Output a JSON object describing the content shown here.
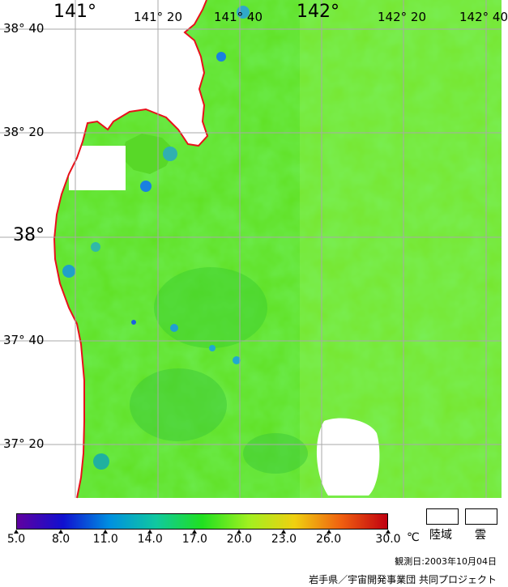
{
  "map": {
    "lon_labels": [
      {
        "text": "141°",
        "size": "big"
      },
      {
        "text": "141° 20",
        "size": "small"
      },
      {
        "text": "141° 40",
        "size": "small"
      },
      {
        "text": "142°",
        "size": "big"
      },
      {
        "text": "142° 20",
        "size": "small"
      },
      {
        "text": "142° 40",
        "size": "small"
      }
    ],
    "lat_labels": [
      {
        "text": "38° 40",
        "size": "small"
      },
      {
        "text": "38° 20",
        "size": "small"
      },
      {
        "text": "38°",
        "size": "big"
      },
      {
        "text": "37° 40",
        "size": "small"
      },
      {
        "text": "37° 20",
        "size": "small"
      }
    ],
    "colors": {
      "land": "#ffffff",
      "coast": "#e8101a",
      "grid": "#a8a8a8",
      "sea_base": "#5fe020"
    }
  },
  "colorbar": {
    "ticks": [
      "5.0",
      "8.0",
      "11.0",
      "14.0",
      "17.0",
      "20.0",
      "23.0",
      "26.0",
      "30.0"
    ],
    "unit": "℃",
    "colors": [
      "#6000a0",
      "#1010d0",
      "#0090e0",
      "#10c8a0",
      "#20e020",
      "#a0f020",
      "#f0d010",
      "#f06010",
      "#c00010"
    ]
  },
  "legend": {
    "land_label": "陸域",
    "cloud_label": "雲"
  },
  "footer": {
    "observation_date": "観測日:2003年10月04日",
    "credit": "岩手県／宇宙開発事業団 共同プロジェクト"
  }
}
